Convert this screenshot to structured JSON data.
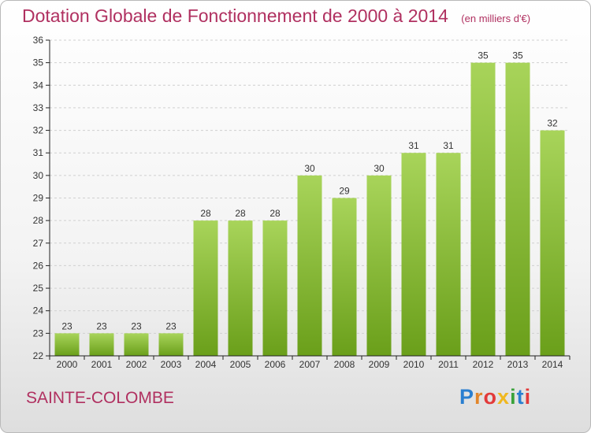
{
  "title": "Dotation Globale de Fonctionnement de 2000 à 2014",
  "subtitle": "(en milliers d'€)",
  "place": "SAINTE-COLOMBE",
  "logo_text": "Proxiti",
  "colors": {
    "title": "#b03060",
    "bar_light": "#a8d45a",
    "bar_dark": "#6a9f1a",
    "axis": "#222222",
    "grid": "#d0d0d0"
  },
  "chart_data": {
    "type": "bar",
    "title": "Dotation Globale de Fonctionnement de 2000 à 2014",
    "subtitle": "(en milliers d'€)",
    "categories": [
      "2000",
      "2001",
      "2002",
      "2003",
      "2004",
      "2005",
      "2006",
      "2007",
      "2008",
      "2009",
      "2010",
      "2011",
      "2012",
      "2013",
      "2014"
    ],
    "values": [
      23,
      23,
      23,
      23,
      28,
      28,
      28,
      30,
      29,
      30,
      31,
      31,
      35,
      35,
      32
    ],
    "ylim": [
      22,
      36
    ],
    "yticks": [
      22,
      23,
      24,
      25,
      26,
      27,
      28,
      29,
      30,
      31,
      32,
      33,
      34,
      35,
      36
    ],
    "grid": true,
    "data_labels": true
  }
}
